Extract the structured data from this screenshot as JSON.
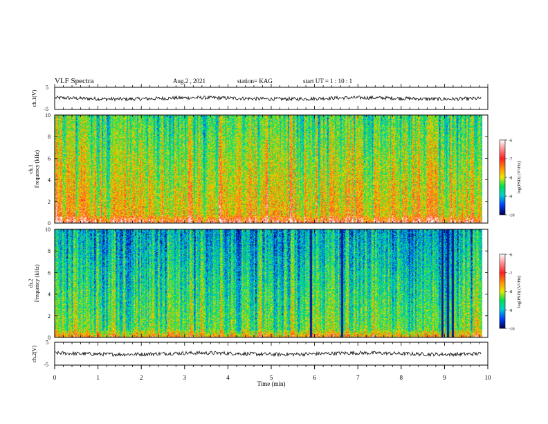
{
  "header": {
    "title": "VLF Spectra",
    "date": "Aug.2  , 2021",
    "station": "station= KAG",
    "start": "start  UT  =   1 : 10 : 1"
  },
  "colorbar": {
    "label": "log(PSD) (V²/Hz)",
    "ticks": [
      "-6",
      "-7",
      "-8",
      "-9",
      "-10"
    ],
    "colors": [
      "#ffffff",
      "#ff3030",
      "#ffa000",
      "#e0e000",
      "#00e050",
      "#00d0d0",
      "#0050ff",
      "#000060"
    ]
  },
  "chart_data": [
    {
      "type": "line",
      "name": "waveform-ch1",
      "ylabel": "ch.1(V)",
      "ylim": [
        -5,
        5
      ],
      "yticks": [
        "5",
        "-5"
      ],
      "xlim": [
        0,
        10
      ],
      "baseline": 0,
      "color": "#000000"
    },
    {
      "type": "heatmap",
      "name": "spectrogram-ch1",
      "ylabel": "ch.1\nFrequency (kHz)",
      "ylim": [
        0,
        10
      ],
      "yticks": [
        "10",
        "8",
        "6",
        "4",
        "2",
        "0"
      ],
      "xlim": [
        0,
        10
      ],
      "data_end_min": 9.85,
      "zlim": [
        -10,
        -6
      ],
      "zlabel": "log(PSD) (V²/Hz)"
    },
    {
      "type": "heatmap",
      "name": "spectrogram-ch2",
      "ylabel": "ch.2\nFrequency (kHz)",
      "ylim": [
        0,
        10
      ],
      "yticks": [
        "10",
        "8",
        "6",
        "4",
        "2",
        "0"
      ],
      "xlim": [
        0,
        10
      ],
      "data_end_min": 9.85,
      "zlim": [
        -10,
        -6
      ],
      "zlabel": "log(PSD) (V²/Hz)"
    },
    {
      "type": "line",
      "name": "waveform-ch2",
      "ylabel": "ch.2(V)",
      "ylim": [
        -5,
        5
      ],
      "yticks": [
        "5",
        "-5"
      ],
      "xlim": [
        0,
        10
      ],
      "baseline": 0,
      "color": "#000000"
    }
  ],
  "xaxis": {
    "label": "Time  (min)",
    "ticks": [
      "0",
      "1",
      "2",
      "3",
      "4",
      "5",
      "6",
      "7",
      "8",
      "9",
      "10"
    ]
  }
}
